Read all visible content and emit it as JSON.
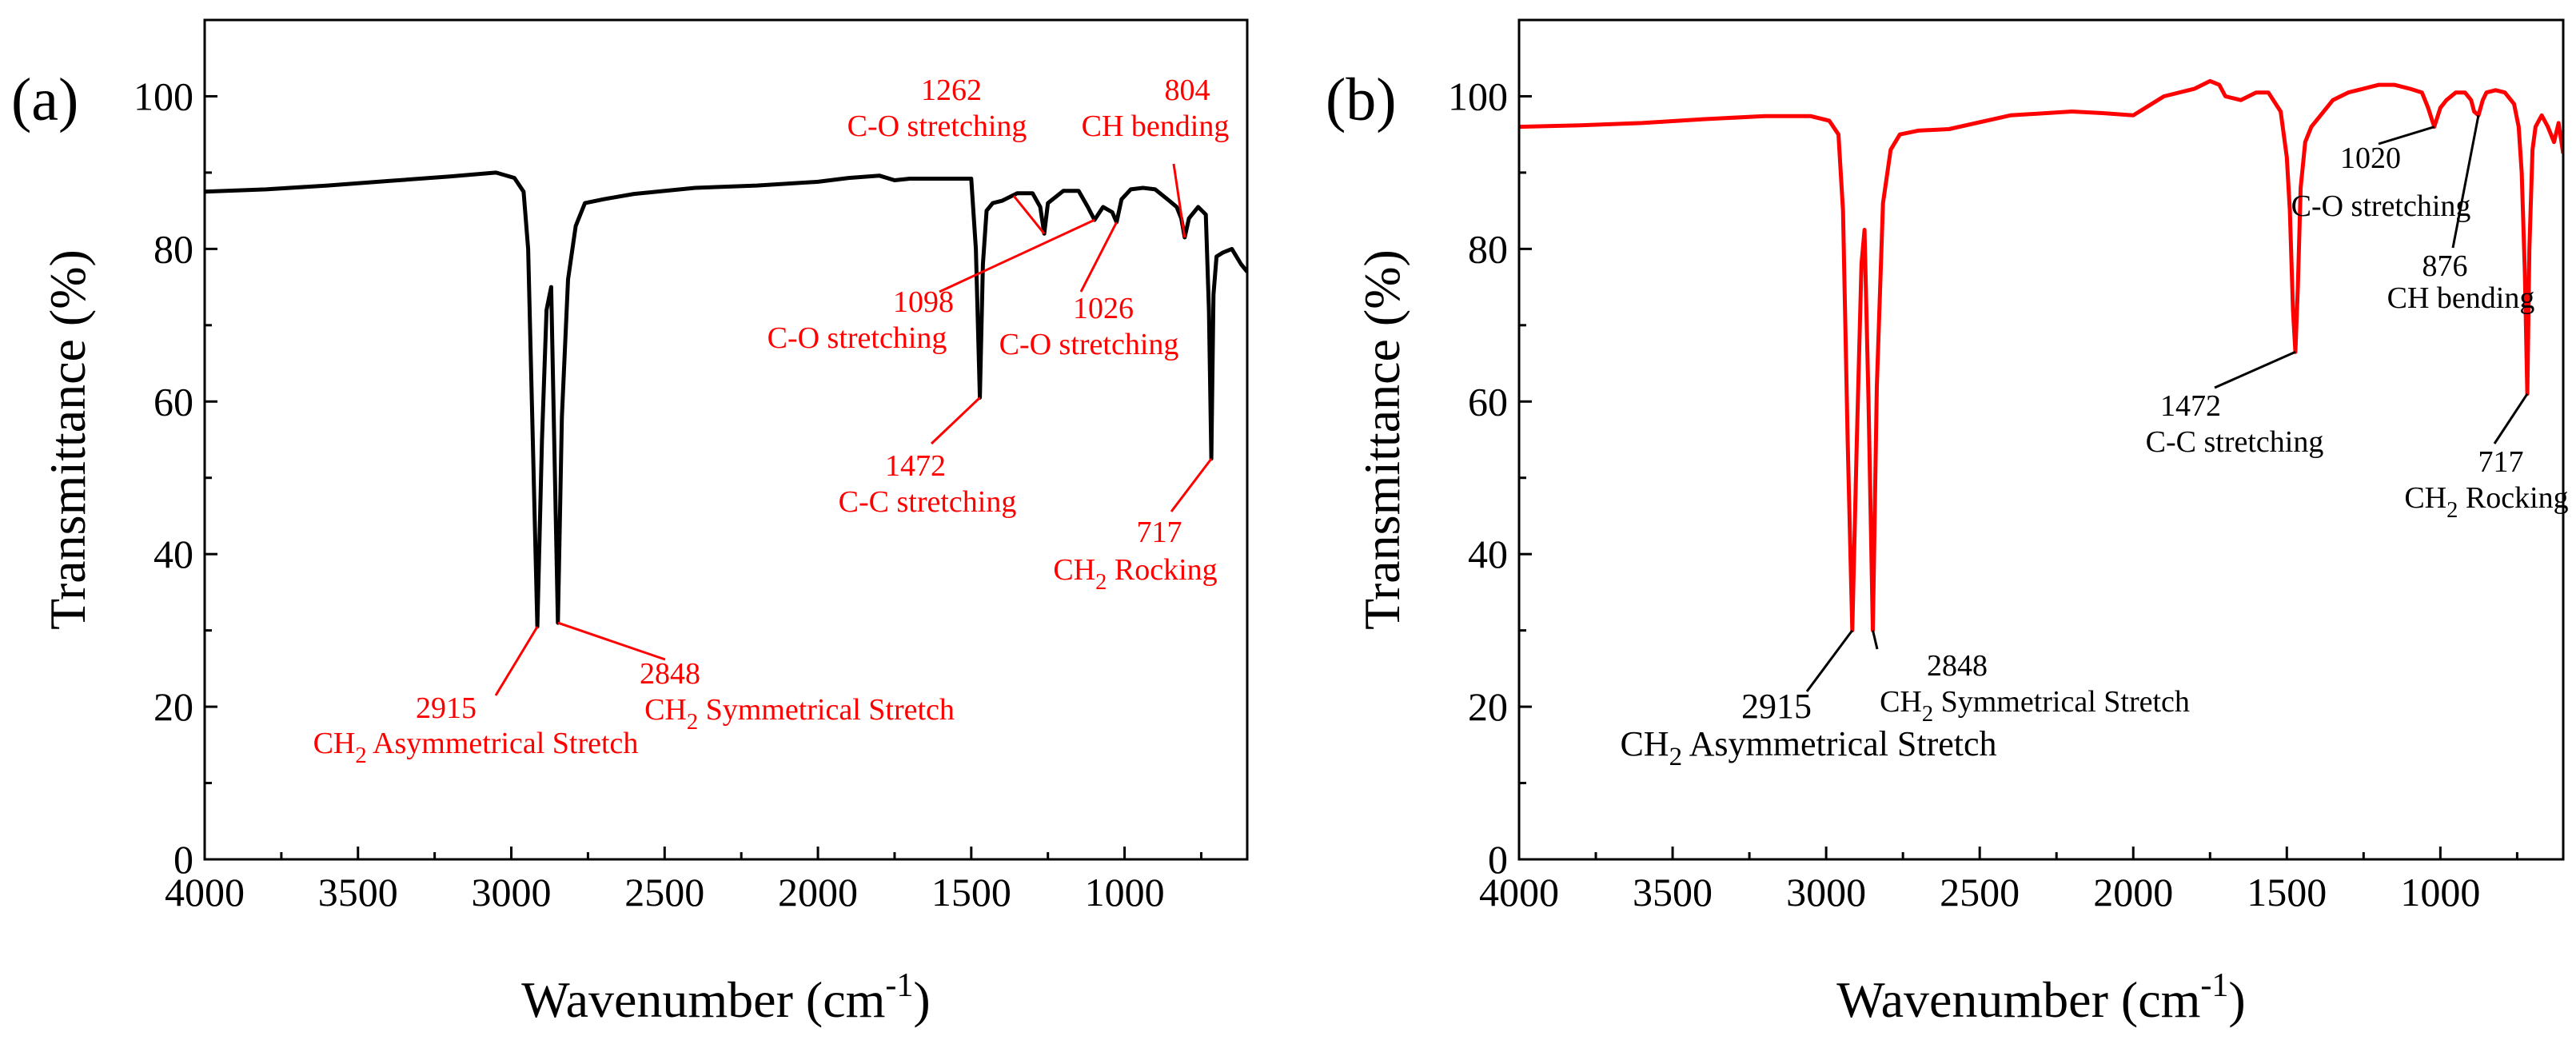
{
  "chart_data": [
    {
      "type": "line",
      "panel_label": "(a)",
      "xlabel": "Wavenumber (cm⁻¹)",
      "ylabel": "Transmittance (%)",
      "xlim": [
        4000,
        600
      ],
      "ylim": [
        0,
        110
      ],
      "xticks": [
        4000,
        3500,
        3000,
        2500,
        2000,
        1500,
        1000
      ],
      "yticks": [
        0,
        20,
        40,
        60,
        80,
        100
      ],
      "series": [
        {
          "name": "spectrum-a",
          "color": "#000000",
          "x": [
            4000,
            3800,
            3600,
            3400,
            3200,
            3050,
            2990,
            2960,
            2945,
            2930,
            2915,
            2900,
            2885,
            2870,
            2860,
            2848,
            2835,
            2815,
            2790,
            2760,
            2700,
            2600,
            2400,
            2200,
            2000,
            1900,
            1800,
            1750,
            1700,
            1600,
            1550,
            1500,
            1485,
            1472,
            1462,
            1450,
            1430,
            1400,
            1350,
            1300,
            1275,
            1262,
            1250,
            1200,
            1150,
            1120,
            1098,
            1070,
            1040,
            1026,
            1010,
            980,
            940,
            900,
            860,
            830,
            815,
            804,
            790,
            760,
            735,
            725,
            717,
            710,
            700,
            680,
            650,
            620,
            600
          ],
          "y": [
            87.5,
            87.8,
            88.3,
            88.9,
            89.5,
            90.0,
            89.3,
            87.5,
            80,
            55,
            30.5,
            55,
            72,
            75,
            55,
            31,
            58,
            76,
            83,
            86,
            86.5,
            87.2,
            88,
            88.3,
            88.8,
            89.3,
            89.6,
            89,
            89.2,
            89.2,
            89.2,
            89.2,
            80,
            60.5,
            78,
            85,
            86,
            86.3,
            87.3,
            87.3,
            85.5,
            82,
            86,
            87.6,
            87.6,
            85.5,
            83.8,
            85.5,
            84.8,
            83.5,
            86.5,
            87.8,
            88,
            87.8,
            86.5,
            85.5,
            84,
            81.5,
            84,
            85.5,
            84.5,
            72,
            52.5,
            74,
            79,
            79.5,
            80,
            78,
            77
          ]
        }
      ],
      "annotations": [
        {
          "number": "2915",
          "label": "CH",
          "sub": "2",
          "rest": " Asymmetrical Stretch",
          "peak_x": 2915,
          "peak_y": 30.5
        },
        {
          "number": "2848",
          "label": "CH",
          "sub": "2",
          "rest": " Symmetrical Stretch",
          "peak_x": 2848,
          "peak_y": 31
        },
        {
          "number": "1472",
          "label": "C-C stretching",
          "peak_x": 1472,
          "peak_y": 60.5
        },
        {
          "number": "1262",
          "label": "C-O stretching",
          "peak_x": 1262,
          "peak_y": 82
        },
        {
          "number": "804",
          "label": "CH bending",
          "peak_x": 804,
          "peak_y": 81.5
        },
        {
          "number": "1098",
          "label": "C-O stretching",
          "peak_x": 1098,
          "peak_y": 83.8
        },
        {
          "number": "1026",
          "label": "C-O stretching",
          "peak_x": 1026,
          "peak_y": 83.5
        },
        {
          "number": "717",
          "label": "CH",
          "sub": "2",
          "rest": " Rocking",
          "peak_x": 717,
          "peak_y": 52.5
        }
      ]
    },
    {
      "type": "line",
      "panel_label": "(b)",
      "xlabel": "Wavenumber (cm⁻¹)",
      "ylabel": "Transmittance (%)",
      "xlim": [
        4000,
        600
      ],
      "ylim": [
        0,
        110
      ],
      "xticks": [
        4000,
        3500,
        3000,
        2500,
        2000,
        1500,
        1000
      ],
      "yticks": [
        0,
        20,
        40,
        60,
        80,
        100
      ],
      "series": [
        {
          "name": "spectrum-b",
          "color": "#ff0000",
          "x": [
            4000,
            3800,
            3600,
            3400,
            3200,
            3050,
            2990,
            2960,
            2945,
            2930,
            2915,
            2900,
            2885,
            2875,
            2862,
            2848,
            2835,
            2815,
            2790,
            2760,
            2700,
            2600,
            2400,
            2200,
            2100,
            2000,
            1900,
            1800,
            1750,
            1720,
            1700,
            1650,
            1600,
            1560,
            1520,
            1500,
            1490,
            1480,
            1472,
            1464,
            1455,
            1440,
            1420,
            1400,
            1350,
            1300,
            1250,
            1200,
            1150,
            1100,
            1060,
            1040,
            1020,
            1000,
            980,
            950,
            920,
            900,
            890,
            876,
            862,
            850,
            820,
            790,
            760,
            745,
            735,
            725,
            717,
            710,
            700,
            690,
            670,
            650,
            630,
            615,
            600
          ],
          "y": [
            96,
            96.2,
            96.5,
            97,
            97.4,
            97.4,
            96.8,
            95,
            85,
            55,
            30,
            55,
            78,
            82.5,
            60,
            30,
            62,
            86,
            93,
            95,
            95.5,
            95.7,
            97.5,
            98,
            97.8,
            97.5,
            100,
            101,
            102,
            101.5,
            100,
            99.5,
            100.5,
            100.5,
            98,
            92,
            85,
            72,
            66.5,
            75,
            88,
            94,
            96,
            97,
            99.5,
            100.5,
            101,
            101.5,
            101.5,
            101,
            100.5,
            98.5,
            96,
            98.5,
            99.5,
            100.5,
            100.5,
            99.5,
            98,
            97.5,
            99.5,
            100.5,
            100.8,
            100.5,
            99,
            96,
            90,
            77,
            61,
            80,
            93,
            96,
            97.5,
            96,
            94,
            96.5,
            92.5
          ]
        }
      ],
      "annotations": [
        {
          "number": "2915",
          "label": "CH",
          "sub": "2",
          "rest": " Asymmetrical Stretch",
          "peak_x": 2915,
          "peak_y": 30
        },
        {
          "number": "2848",
          "label": "CH",
          "sub": "2",
          "rest": " Symmetrical Stretch",
          "peak_x": 2848,
          "peak_y": 30
        },
        {
          "number": "1472",
          "label": "C-C stretching",
          "peak_x": 1472,
          "peak_y": 66.5
        },
        {
          "number": "1020",
          "label": "C-O stretching",
          "peak_x": 1020,
          "peak_y": 96
        },
        {
          "number": "876",
          "label": "CH bending",
          "peak_x": 876,
          "peak_y": 97.5
        },
        {
          "number": "717",
          "label": "CH",
          "sub": "2",
          "rest": " Rocking",
          "peak_x": 717,
          "peak_y": 61
        }
      ]
    }
  ]
}
